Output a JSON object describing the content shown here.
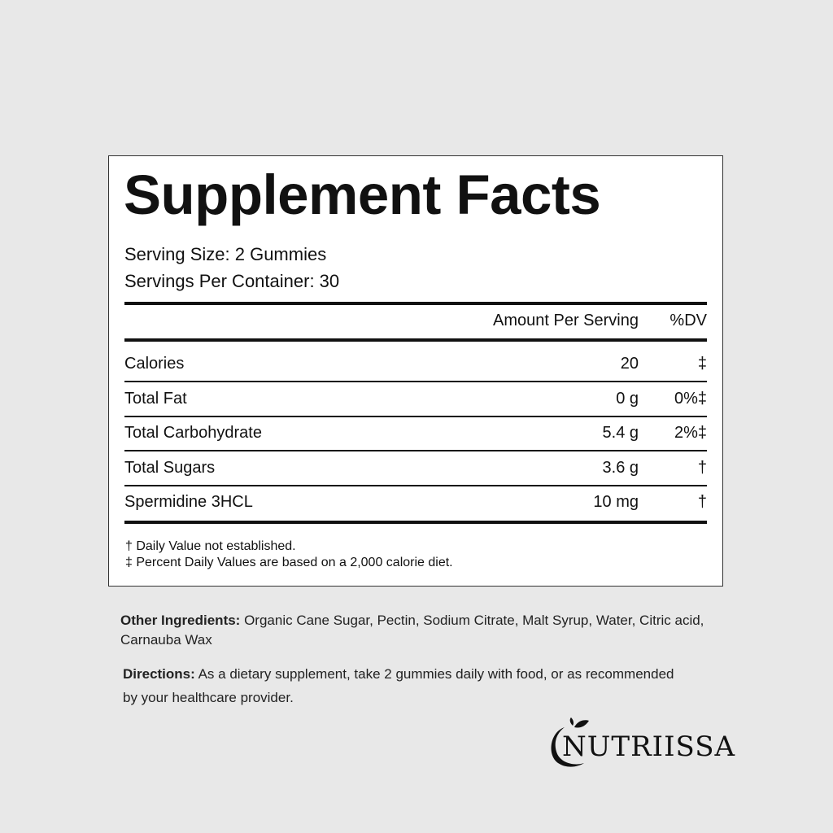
{
  "label": {
    "title": "Supplement Facts",
    "serving_size": "Serving Size: 2 Gummies",
    "servings_per_container": "Servings Per Container: 30",
    "header_amount": "Amount Per Serving",
    "header_dv": "%DV",
    "rows": [
      {
        "name": "Calories",
        "amount": "20",
        "dv": "‡"
      },
      {
        "name": "Total Fat",
        "amount": "0 g",
        "dv": "0%‡"
      },
      {
        "name": "Total Carbohydrate",
        "amount": "5.4 g",
        "dv": "2%‡"
      },
      {
        "name": "Total Sugars",
        "amount": "3.6 g",
        "dv": "†"
      },
      {
        "name": "Spermidine 3HCL",
        "amount": "10 mg",
        "dv": "†"
      }
    ],
    "footnote_1": "† Daily Value not established.",
    "footnote_2": "‡ Percent Daily Values are based on a 2,000 calorie diet."
  },
  "other_ingredients": {
    "label": "Other Ingredients:",
    "text": " Organic Cane Sugar, Pectin, Sodium Citrate, Malt Syrup, Water, Citric acid, Carnauba Wax"
  },
  "directions": {
    "label": "Directions:",
    "text": " As a dietary supplement, take 2 gummies daily with food, or as recommended by your healthcare provider."
  },
  "brand": {
    "name": "NUTRIISSA"
  }
}
